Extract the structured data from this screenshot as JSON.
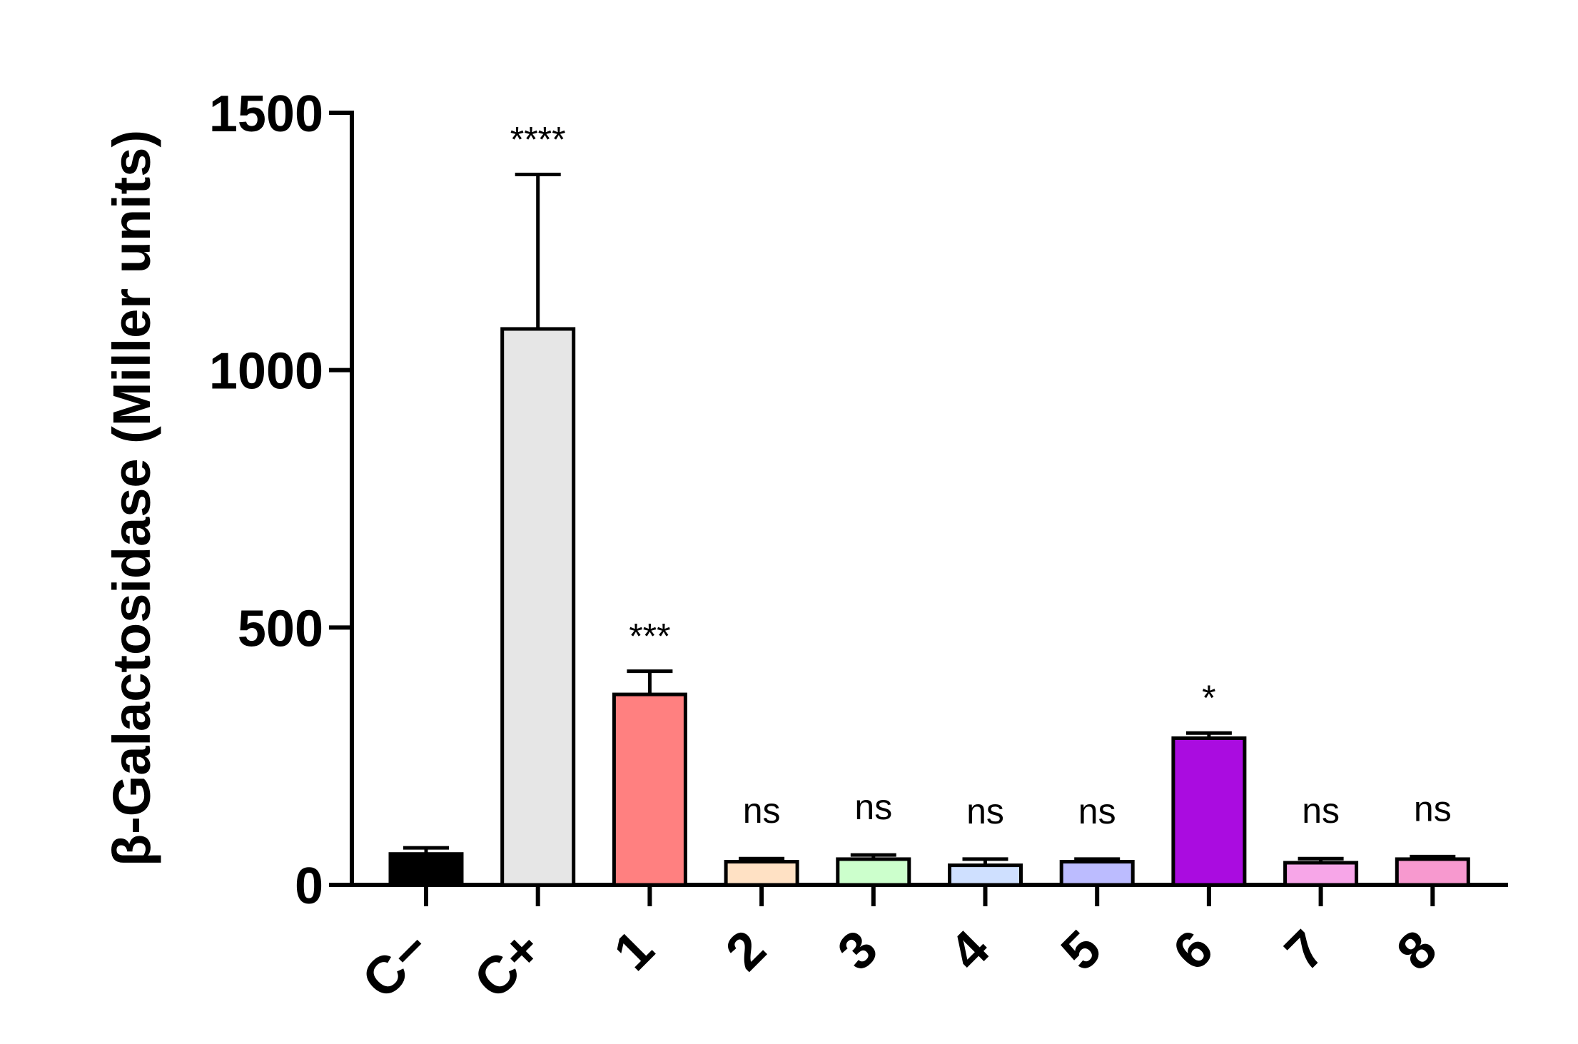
{
  "chart_data": {
    "type": "bar",
    "ylabel": "β-Galactosidase (Miller units)",
    "ylim": [
      0,
      1500
    ],
    "yticks": [
      "0",
      "500",
      "1000",
      "1500"
    ],
    "categories": [
      "C−",
      "C+",
      "1",
      "2",
      "3",
      "4",
      "5",
      "6",
      "7",
      "8"
    ],
    "values": [
      60,
      1080,
      370,
      45,
      50,
      38,
      45,
      285,
      43,
      50
    ],
    "errors": [
      12,
      300,
      45,
      6,
      8,
      12,
      5,
      10,
      8,
      5
    ],
    "annotations": [
      "",
      "****",
      "***",
      "ns",
      "ns",
      "ns",
      "ns",
      "*",
      "ns",
      "ns"
    ],
    "colors": [
      "#000000",
      "#e6e6e6",
      "#ff8080",
      "#ffe1c4",
      "#ccffcc",
      "#cfe0ff",
      "#bcbcff",
      "#aa0ce0",
      "#f7a6e8",
      "#f799cf"
    ],
    "grid": false
  }
}
